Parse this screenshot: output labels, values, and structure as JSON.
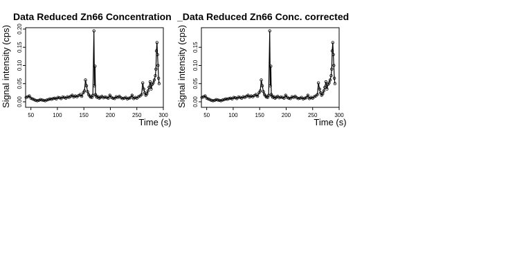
{
  "chart_data": [
    {
      "type": "scatter",
      "title": "Data Reduced Zn66 Concentration",
      "xlabel": "Time (s)",
      "ylabel": "Signal intensity (cps)",
      "xticks": [
        "50",
        "100",
        "150",
        "200",
        "250",
        "300"
      ],
      "yticks": [
        "0.00",
        "0.05",
        "0.10",
        "0.15",
        "0.20"
      ],
      "xlim": [
        40,
        300
      ],
      "ylim": [
        0,
        0.2
      ],
      "grid": false,
      "connected": true,
      "series": [
        {
          "x": [
            41,
            44,
            47,
            50,
            53,
            56,
            59,
            62,
            65,
            68,
            71,
            74,
            77,
            80,
            83,
            86,
            89,
            92,
            95,
            98,
            101,
            104,
            107,
            110,
            113,
            116,
            119,
            122,
            125,
            128,
            131,
            134,
            137,
            140,
            143,
            146,
            149,
            151,
            153,
            155,
            157,
            159,
            161,
            163,
            165,
            167,
            169,
            170,
            171,
            172,
            173,
            175,
            177,
            179,
            181,
            184,
            187,
            190,
            193,
            196,
            199,
            202,
            205,
            208,
            211,
            214,
            217,
            220,
            223,
            226,
            229,
            232,
            235,
            238,
            241,
            244,
            247,
            250,
            253,
            256,
            259,
            261,
            263,
            265,
            267,
            269,
            271,
            273,
            275,
            277,
            279,
            281,
            283,
            285,
            286,
            287,
            288,
            289,
            290,
            291,
            292
          ],
          "y": [
            0.012,
            0.014,
            0.016,
            0.01,
            0.008,
            0.006,
            0.004,
            0.003,
            0.004,
            0.006,
            0.005,
            0.004,
            0.003,
            0.005,
            0.006,
            0.008,
            0.007,
            0.009,
            0.01,
            0.008,
            0.012,
            0.011,
            0.009,
            0.013,
            0.012,
            0.01,
            0.014,
            0.012,
            0.015,
            0.018,
            0.013,
            0.016,
            0.014,
            0.017,
            0.02,
            0.015,
            0.025,
            0.03,
            0.06,
            0.044,
            0.028,
            0.02,
            0.016,
            0.013,
            0.012,
            0.018,
            0.195,
            0.044,
            0.098,
            0.02,
            0.016,
            0.012,
            0.014,
            0.01,
            0.012,
            0.015,
            0.011,
            0.013,
            0.012,
            0.01,
            0.018,
            0.012,
            0.01,
            0.009,
            0.014,
            0.012,
            0.015,
            0.011,
            0.009,
            0.01,
            0.012,
            0.008,
            0.01,
            0.011,
            0.018,
            0.009,
            0.012,
            0.01,
            0.014,
            0.016,
            0.02,
            0.052,
            0.035,
            0.025,
            0.018,
            0.022,
            0.03,
            0.04,
            0.055,
            0.035,
            0.048,
            0.052,
            0.06,
            0.072,
            0.09,
            0.14,
            0.163,
            0.13,
            0.1,
            0.065,
            0.05
          ]
        }
      ]
    },
    {
      "type": "scatter",
      "title": "_Data Reduced Zn66 Conc. corrected",
      "xlabel": "Time (s)",
      "ylabel": "Signal intensity (cps)",
      "xticks": [
        "50",
        "100",
        "150",
        "200",
        "250",
        "300"
      ],
      "yticks": [
        "0.00",
        "0.05",
        "0.10",
        "0.15"
      ],
      "xlim": [
        40,
        300
      ],
      "ylim": [
        0,
        0.2
      ],
      "grid": false,
      "connected": true,
      "series": [
        {
          "x": [
            41,
            44,
            47,
            50,
            53,
            56,
            59,
            62,
            65,
            68,
            71,
            74,
            77,
            80,
            83,
            86,
            89,
            92,
            95,
            98,
            101,
            104,
            107,
            110,
            113,
            116,
            119,
            122,
            125,
            128,
            131,
            134,
            137,
            140,
            143,
            146,
            149,
            151,
            153,
            155,
            157,
            159,
            161,
            163,
            165,
            167,
            169,
            170,
            171,
            172,
            173,
            175,
            177,
            179,
            181,
            184,
            187,
            190,
            193,
            196,
            199,
            202,
            205,
            208,
            211,
            214,
            217,
            220,
            223,
            226,
            229,
            232,
            235,
            238,
            241,
            244,
            247,
            250,
            253,
            256,
            259,
            261,
            263,
            265,
            267,
            269,
            271,
            273,
            275,
            277,
            279,
            281,
            283,
            285,
            286,
            287,
            288,
            289,
            290,
            291,
            292
          ],
          "y": [
            0.012,
            0.014,
            0.016,
            0.01,
            0.008,
            0.006,
            0.004,
            0.003,
            0.004,
            0.006,
            0.005,
            0.004,
            0.003,
            0.005,
            0.006,
            0.008,
            0.007,
            0.009,
            0.01,
            0.008,
            0.012,
            0.011,
            0.009,
            0.013,
            0.012,
            0.01,
            0.014,
            0.012,
            0.015,
            0.018,
            0.013,
            0.016,
            0.014,
            0.017,
            0.02,
            0.015,
            0.025,
            0.03,
            0.06,
            0.044,
            0.028,
            0.02,
            0.016,
            0.013,
            0.012,
            0.018,
            0.195,
            0.044,
            0.098,
            0.02,
            0.016,
            0.012,
            0.014,
            0.01,
            0.012,
            0.015,
            0.011,
            0.013,
            0.012,
            0.01,
            0.018,
            0.012,
            0.01,
            0.009,
            0.014,
            0.012,
            0.015,
            0.011,
            0.009,
            0.01,
            0.012,
            0.008,
            0.01,
            0.011,
            0.018,
            0.009,
            0.012,
            0.01,
            0.014,
            0.016,
            0.02,
            0.052,
            0.035,
            0.025,
            0.018,
            0.022,
            0.03,
            0.04,
            0.055,
            0.035,
            0.048,
            0.052,
            0.06,
            0.072,
            0.09,
            0.14,
            0.163,
            0.13,
            0.1,
            0.065,
            0.05
          ]
        }
      ]
    }
  ]
}
